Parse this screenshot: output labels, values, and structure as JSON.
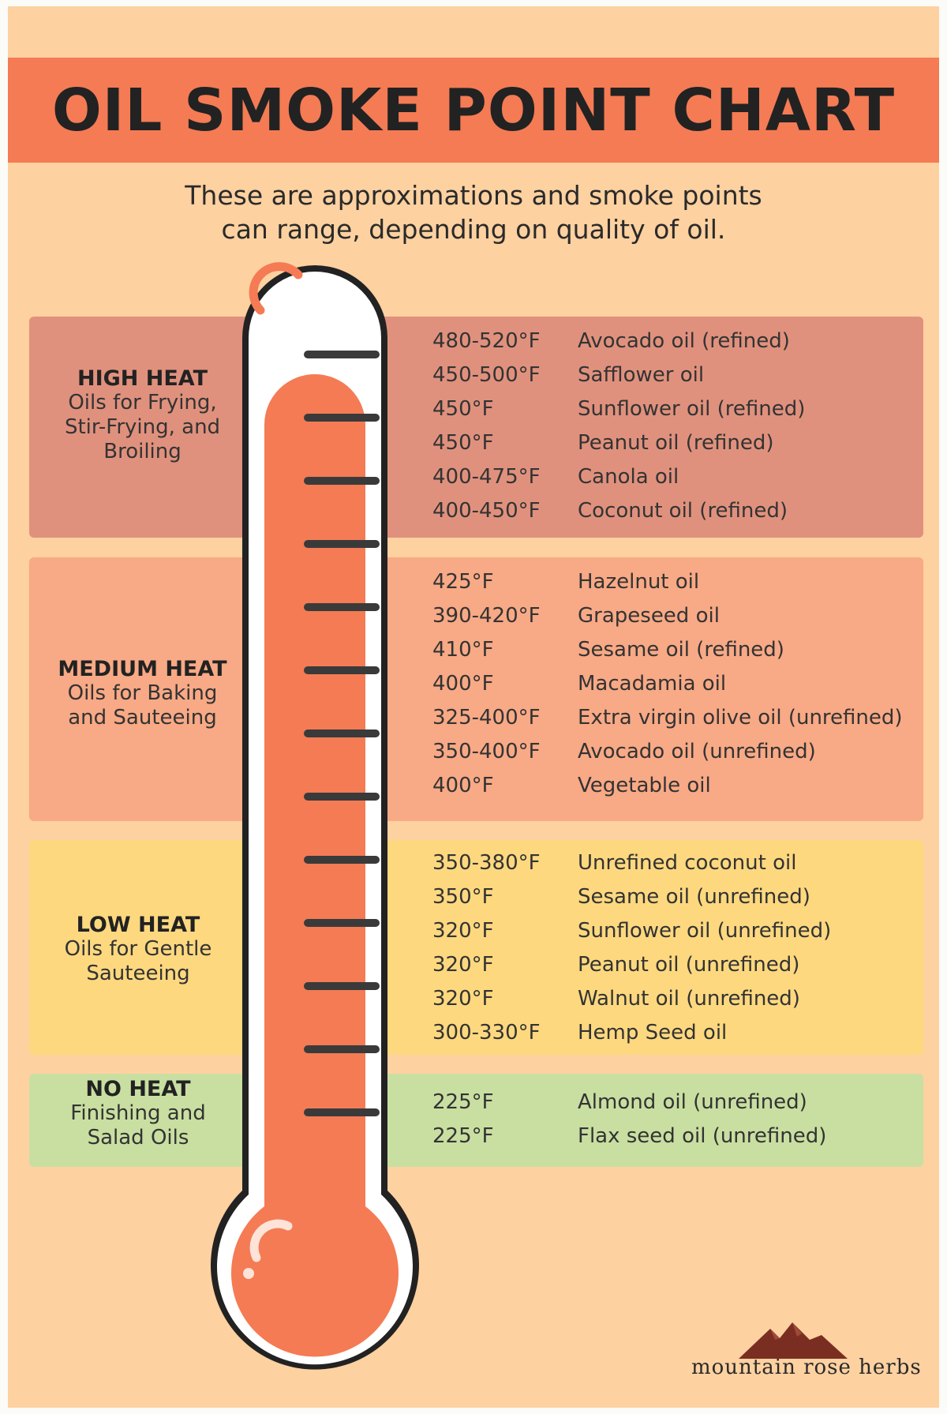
{
  "title": "OIL SMOKE POINT CHART",
  "subtitle": {
    "line1": "These are approximations and smoke points",
    "line2": "can range, depending on quality of oil."
  },
  "categories": [
    {
      "name": "HIGH HEAT",
      "desc": [
        "Oils for Frying,",
        "Stir-Frying, and",
        "Broiling"
      ],
      "color": "#e0917d",
      "rows": [
        {
          "temp": "480-520°F",
          "oil": "Avocado oil (refined)"
        },
        {
          "temp": "450-500°F",
          "oil": "Safflower oil"
        },
        {
          "temp": "450°F",
          "oil": "Sunflower oil (refined)"
        },
        {
          "temp": "450°F",
          "oil": "Peanut oil (refined)"
        },
        {
          "temp": "400-475°F",
          "oil": "Canola oil"
        },
        {
          "temp": "400-450°F",
          "oil": "Coconut oil (refined)"
        }
      ]
    },
    {
      "name": "MEDIUM HEAT",
      "desc": [
        "Oils for Baking",
        "and Sauteeing"
      ],
      "color": "#f8a985",
      "rows": [
        {
          "temp": "425°F",
          "oil": "Hazelnut oil"
        },
        {
          "temp": "390-420°F",
          "oil": "Grapeseed oil"
        },
        {
          "temp": "410°F",
          "oil": "Sesame oil (refined)"
        },
        {
          "temp": "400°F",
          "oil": "Macadamia oil"
        },
        {
          "temp": "325-400°F",
          "oil": "Extra virgin olive oil (unrefined)"
        },
        {
          "temp": "350-400°F",
          "oil": "Avocado oil (unrefined)"
        },
        {
          "temp": "400°F",
          "oil": "Vegetable oil"
        }
      ]
    },
    {
      "name": "LOW HEAT",
      "desc": [
        "Oils for Gentle",
        "Sauteeing"
      ],
      "color": "#fdd87f",
      "rows": [
        {
          "temp": "350-380°F",
          "oil": "Unrefined coconut oil"
        },
        {
          "temp": "350°F",
          "oil": "Sesame oil (unrefined)"
        },
        {
          "temp": "320°F",
          "oil": "Sunflower oil (unrefined)"
        },
        {
          "temp": "320°F",
          "oil": "Peanut oil (unrefined)"
        },
        {
          "temp": "320°F",
          "oil": "Walnut oil (unrefined)"
        },
        {
          "temp": "300-330°F",
          "oil": "Hemp Seed oil"
        }
      ]
    },
    {
      "name": "NO HEAT",
      "desc": [
        "Finishing and",
        "Salad Oils"
      ],
      "color": "#c9dfa1",
      "rows": [
        {
          "temp": "225°F",
          "oil": "Almond oil (unrefined)"
        },
        {
          "temp": "225°F",
          "oil": "Flax seed oil (unrefined)"
        }
      ]
    }
  ],
  "colors": {
    "background": "#fdd1a0",
    "title_bar": "#f47b54",
    "mercury": "#f47b54",
    "outline": "#222222"
  },
  "brand": {
    "name": "mountain rose herbs",
    "icon": "mountain-logo-icon"
  }
}
